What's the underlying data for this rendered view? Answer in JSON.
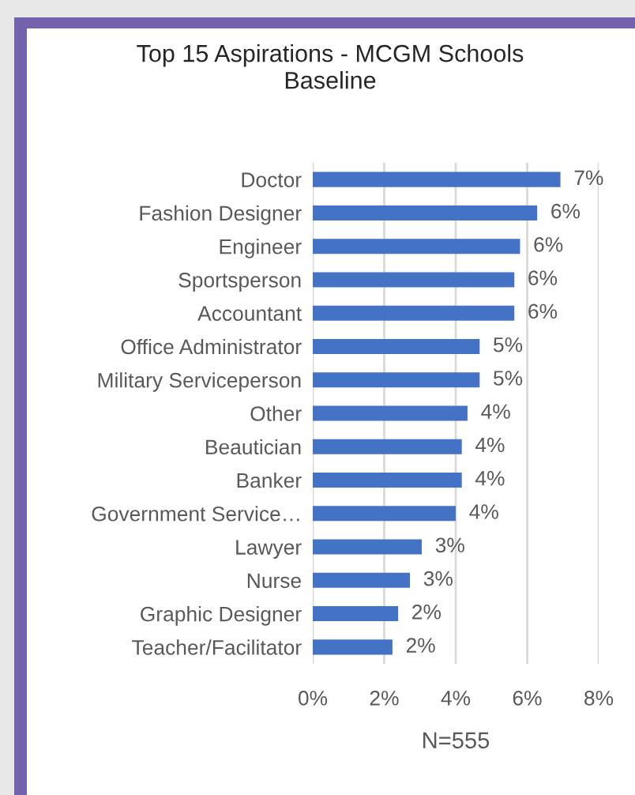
{
  "chart_data": {
    "type": "bar",
    "orientation": "horizontal",
    "title": "Top 15 Aspirations - MCGM Schools\nBaseline",
    "xlabel": "N=555",
    "categories": [
      "Doctor",
      "Fashion Designer",
      "Engineer",
      "Sportsperson",
      "Accountant",
      "Office Administrator",
      "Military Serviceperson",
      "Other",
      "Beautician",
      "Banker",
      "Government Service…",
      "Lawyer",
      "Nurse",
      "Graphic Designer",
      "Teacher/Facilitator"
    ],
    "values": [
      6.93,
      6.28,
      5.8,
      5.64,
      5.64,
      4.67,
      4.67,
      4.33,
      4.17,
      4.17,
      4.0,
      3.05,
      2.72,
      2.39,
      2.23
    ],
    "value_labels": [
      "7%",
      "6%",
      "6%",
      "6%",
      "6%",
      "5%",
      "5%",
      "4%",
      "4%",
      "4%",
      "4%",
      "3%",
      "3%",
      "2%",
      "2%"
    ],
    "color": "#4472c4",
    "xlim": [
      0,
      8
    ],
    "xticks": [
      {
        "value": 0,
        "label": "0%"
      },
      {
        "value": 2,
        "label": "2%"
      },
      {
        "value": 4,
        "label": "4%"
      },
      {
        "value": 6,
        "label": "6%"
      },
      {
        "value": 8,
        "label": "8%"
      }
    ],
    "grid": "x",
    "legend": false
  }
}
